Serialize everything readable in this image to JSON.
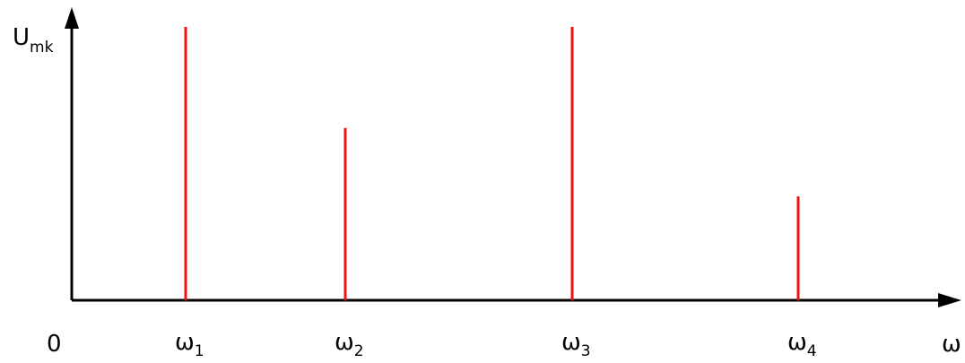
{
  "chart_data": {
    "type": "bar",
    "title": "",
    "ylabel": {
      "main": "U",
      "sub": "mk"
    },
    "xlabel": "ω",
    "origin_label": "0",
    "categories": [
      {
        "main": "ω",
        "sub": "1"
      },
      {
        "main": "ω",
        "sub": "2"
      },
      {
        "main": "ω",
        "sub": "3"
      },
      {
        "main": "ω",
        "sub": "4"
      }
    ],
    "values": [
      1.0,
      0.63,
      1.0,
      0.38
    ],
    "ylim": [
      0,
      1.0
    ],
    "grid": false,
    "legend": "none",
    "bar_style": "spectral-line",
    "colors": {
      "bar": "#ee1111",
      "axis": "#000000"
    }
  }
}
